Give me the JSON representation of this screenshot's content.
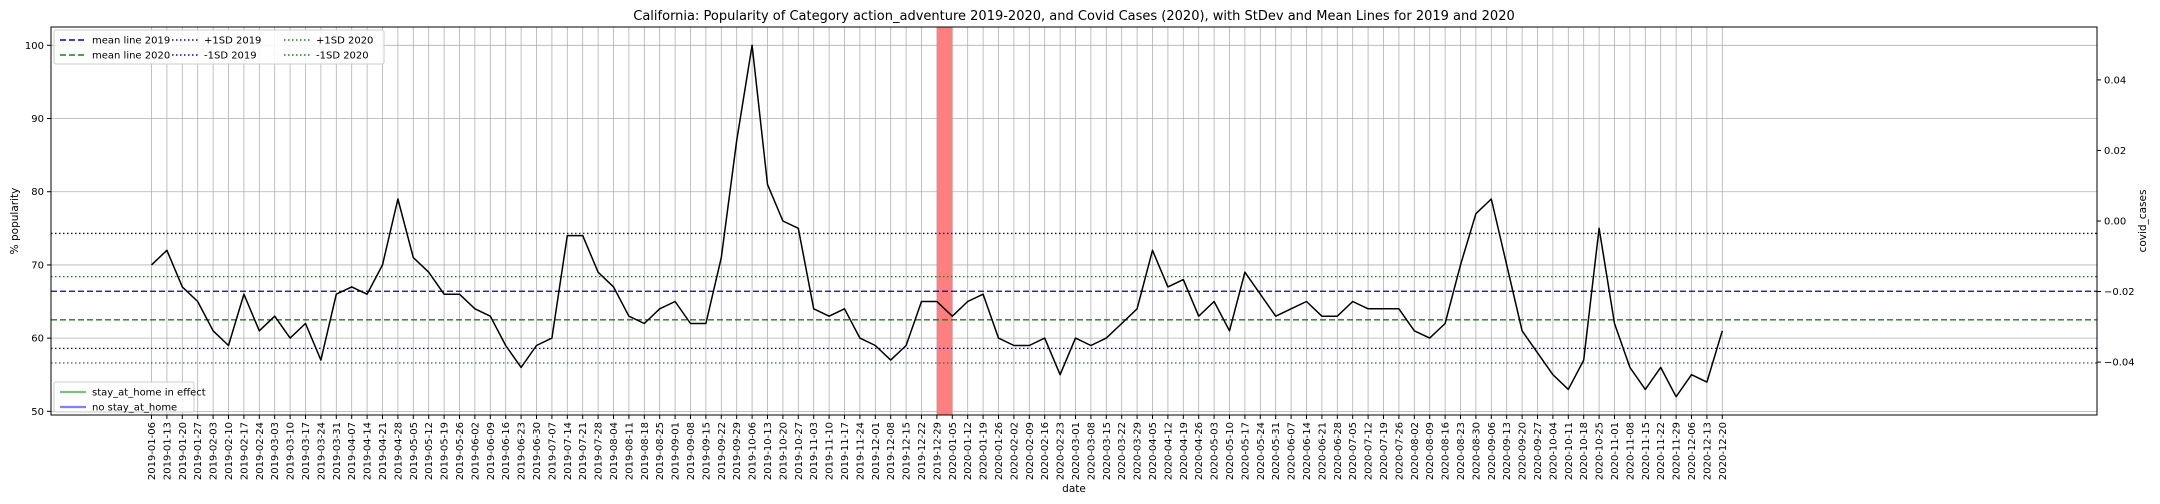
{
  "chart_data": {
    "type": "line",
    "title": "California: Popularity of Category action_adventure 2019-2020, and Covid Cases (2020), with StDev and Mean Lines for 2019 and 2020",
    "xlabel": "date",
    "ylabel": "% popularity",
    "y2label": "covid_cases",
    "ylim": [
      49.5,
      102.5
    ],
    "y2lim": [
      -0.055,
      0.055
    ],
    "yticks": [
      50,
      60,
      70,
      80,
      90,
      100
    ],
    "y2ticks": [
      "0.04",
      "0.02",
      "0.00",
      "−0.02",
      "−0.04"
    ],
    "y2tick_values": [
      0.04,
      0.02,
      0.0,
      -0.02,
      -0.04
    ],
    "grid": true,
    "x": [
      "2019-01-06",
      "2019-01-13",
      "2019-01-20",
      "2019-01-27",
      "2019-02-03",
      "2019-02-10",
      "2019-02-17",
      "2019-02-24",
      "2019-03-03",
      "2019-03-10",
      "2019-03-17",
      "2019-03-24",
      "2019-03-31",
      "2019-04-07",
      "2019-04-14",
      "2019-04-21",
      "2019-04-28",
      "2019-05-05",
      "2019-05-12",
      "2019-05-19",
      "2019-05-26",
      "2019-06-02",
      "2019-06-09",
      "2019-06-16",
      "2019-06-23",
      "2019-06-30",
      "2019-07-07",
      "2019-07-14",
      "2019-07-21",
      "2019-07-28",
      "2019-08-04",
      "2019-08-11",
      "2019-08-18",
      "2019-08-25",
      "2019-09-01",
      "2019-09-08",
      "2019-09-15",
      "2019-09-22",
      "2019-09-29",
      "2019-10-06",
      "2019-10-13",
      "2019-10-20",
      "2019-10-27",
      "2019-11-03",
      "2019-11-10",
      "2019-11-17",
      "2019-11-24",
      "2019-12-01",
      "2019-12-08",
      "2019-12-15",
      "2019-12-22",
      "2019-12-29",
      "2020-01-05",
      "2020-01-12",
      "2020-01-19",
      "2020-01-26",
      "2020-02-02",
      "2020-02-09",
      "2020-02-16",
      "2020-02-23",
      "2020-03-01",
      "2020-03-08",
      "2020-03-15",
      "2020-03-22",
      "2020-03-29",
      "2020-04-05",
      "2020-04-12",
      "2020-04-19",
      "2020-04-26",
      "2020-05-03",
      "2020-05-10",
      "2020-05-17",
      "2020-05-24",
      "2020-05-31",
      "2020-06-07",
      "2020-06-14",
      "2020-06-21",
      "2020-06-28",
      "2020-07-05",
      "2020-07-12",
      "2020-07-19",
      "2020-07-26",
      "2020-08-02",
      "2020-08-09",
      "2020-08-16",
      "2020-08-23",
      "2020-08-30",
      "2020-09-06",
      "2020-09-13",
      "2020-09-20",
      "2020-09-27",
      "2020-10-04",
      "2020-10-11",
      "2020-10-18",
      "2020-10-25",
      "2020-11-01",
      "2020-11-08",
      "2020-11-15",
      "2020-11-22",
      "2020-11-29",
      "2020-12-06",
      "2020-12-13",
      "2020-12-20"
    ],
    "series": [
      {
        "values": [
          70,
          72,
          67,
          65,
          61,
          59,
          66,
          61,
          63,
          60,
          62,
          57,
          66,
          67,
          66,
          70,
          79,
          71,
          69,
          66,
          66,
          64,
          63,
          59,
          56,
          59,
          60,
          74,
          74,
          69,
          67,
          63,
          62,
          64,
          65,
          62,
          62,
          71,
          87,
          100,
          81,
          76,
          75,
          64,
          63,
          64,
          60,
          59,
          57,
          59,
          65,
          65,
          63,
          65,
          66,
          60,
          59,
          59,
          60,
          55,
          60,
          59,
          60,
          62,
          64,
          72,
          67,
          68,
          63,
          65,
          61,
          69,
          66,
          63,
          64,
          65,
          63,
          63,
          65,
          64,
          64,
          64,
          61,
          60,
          62,
          70,
          77,
          79,
          70,
          61,
          58,
          55,
          53,
          57,
          75,
          62,
          56,
          53,
          56,
          52,
          55,
          54,
          61
        ],
        "color": "#000000"
      }
    ],
    "hlines": [
      {
        "label": "mean line 2019",
        "y": 66.4,
        "color": "#0000cc",
        "style": "dashed"
      },
      {
        "label": "mean line 2020",
        "y": 62.5,
        "color": "#1a7f1a",
        "style": "dashed"
      },
      {
        "label": "+1SD 2019",
        "y": 74.3,
        "color": "#0000cc",
        "style": "dotted"
      },
      {
        "label": "-1SD 2019",
        "y": 58.6,
        "color": "#0000cc",
        "style": "dotted"
      },
      {
        "label": "+1SD 2020",
        "y": 68.4,
        "color": "#1a7f1a",
        "style": "dotted"
      },
      {
        "label": "-1SD 2020",
        "y": 56.6,
        "color": "#1a7f1a",
        "style": "dotted"
      }
    ],
    "span": {
      "start": "2019-12-29",
      "end": "2020-01-05",
      "color": "#ff7f7f"
    },
    "legend_top": {
      "placement": "top-left",
      "entries": [
        {
          "label": "mean line 2019",
          "color": "#0000cc",
          "style": "dashed"
        },
        {
          "label": "mean line 2020",
          "color": "#1a7f1a",
          "style": "dashed"
        },
        {
          "label": "+1SD 2019",
          "color": "#0000cc",
          "style": "dotted"
        },
        {
          "label": "-1SD 2019",
          "color": "#0000cc",
          "style": "dotted"
        },
        {
          "label": "+1SD 2020",
          "color": "#1a7f1a",
          "style": "dotted"
        },
        {
          "label": "-1SD 2020",
          "color": "#1a7f1a",
          "style": "dotted"
        }
      ]
    },
    "legend_bottom": {
      "placement": "bottom-left",
      "entries": [
        {
          "label": "stay_at_home in effect",
          "color": "#7fbf7f",
          "style": "solid"
        },
        {
          "label": "no stay_at_home",
          "color": "#7f7fff",
          "style": "solid"
        }
      ]
    }
  }
}
